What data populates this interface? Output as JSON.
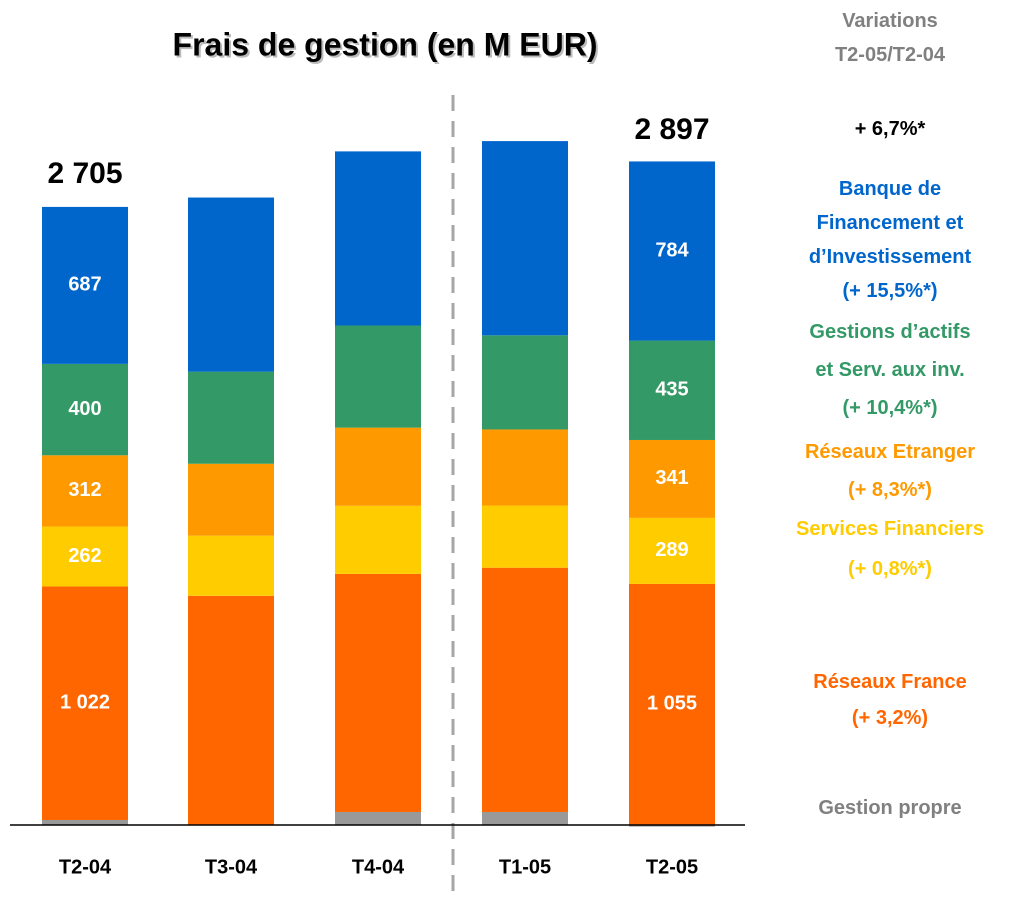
{
  "chart_data": {
    "type": "stacked_bar",
    "title": "Frais de gestion (en M EUR)",
    "variations_header": "Variations\nT2-05/T2-04",
    "total_variation": "+ 6,7%*",
    "categories": [
      "T2-04",
      "T3-04",
      "T4-04",
      "T1-05",
      "T2-05"
    ],
    "ylim": [
      0,
      3000
    ],
    "totals": [
      2705,
      null,
      null,
      null,
      2897
    ],
    "total_labels": [
      "2 705",
      null,
      null,
      null,
      "2 897"
    ],
    "series": [
      {
        "name": "Gestion propre",
        "color": "#999999",
        "text_color": "#808080",
        "values": [
          22,
          0,
          57,
          57,
          -7
        ]
      },
      {
        "name": "Réseaux France",
        "variation": "(+ 3,2%)",
        "color": "#ff6600",
        "text_color": "#ff6600",
        "values": [
          1022,
          1003,
          1042,
          1069,
          1055
        ],
        "value_labels": [
          "1 022",
          null,
          null,
          null,
          "1 055"
        ]
      },
      {
        "name": "Services Financiers",
        "variation": "(+ 0,8%*)",
        "color": "#ffcc00",
        "text_color": "#ffcc00",
        "values": [
          262,
          263,
          298,
          272,
          289
        ],
        "value_labels": [
          "262",
          null,
          null,
          null,
          "289"
        ]
      },
      {
        "name": "Réseaux Etranger",
        "variation": "(+ 8,3%*)",
        "color": "#ff9900",
        "text_color": "#ff9900",
        "values": [
          312,
          315,
          342,
          333,
          341
        ],
        "value_labels": [
          "312",
          null,
          null,
          null,
          "341"
        ]
      },
      {
        "name": "Gestions d’actifs\net Serv. aux inv.",
        "variation": "(+ 10,4%*)",
        "color": "#339966",
        "text_color": "#339966",
        "values": [
          400,
          403,
          447,
          412,
          435
        ],
        "value_labels": [
          "400",
          null,
          null,
          null,
          "435"
        ]
      },
      {
        "name": "Banque de\nFinancement et\nd’Investissement",
        "variation": "(+ 15,5%*)",
        "color": "#0066cc",
        "text_color": "#0066cc",
        "values": [
          687,
          762,
          762,
          850,
          784
        ],
        "value_labels": [
          "687",
          null,
          null,
          null,
          "784"
        ]
      }
    ]
  }
}
